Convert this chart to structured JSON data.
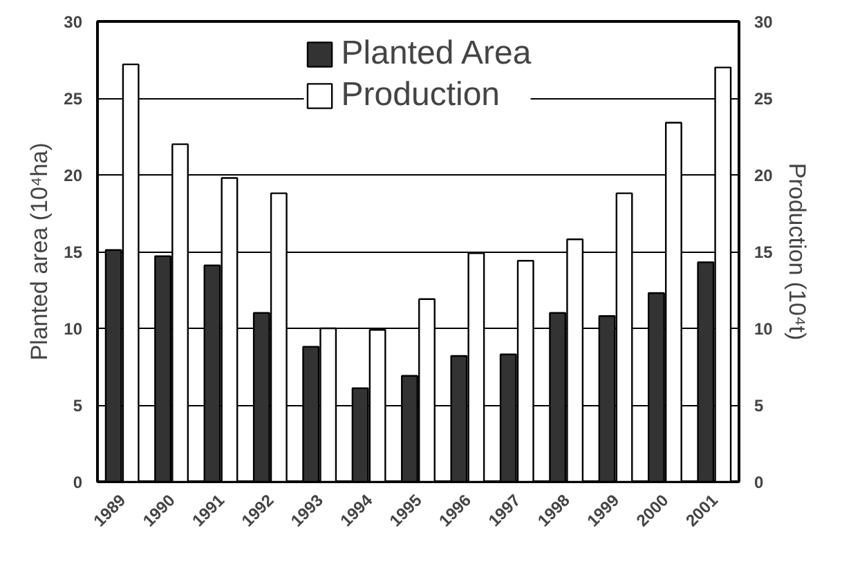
{
  "chart_data": {
    "type": "bar",
    "ylabel": "Planted area (10⁴ha)",
    "y2label": "Production (10⁴t)",
    "categories": [
      "1989",
      "1990",
      "1991",
      "1992",
      "1993",
      "1994",
      "1995",
      "1996",
      "1997",
      "1998",
      "1999",
      "2000",
      "2001"
    ],
    "series": [
      {
        "name": "Planted Area",
        "color": "#333333",
        "values": [
          15.1,
          14.7,
          14.1,
          11.0,
          8.8,
          6.1,
          6.9,
          8.2,
          8.3,
          11.0,
          10.8,
          12.3,
          14.3
        ]
      },
      {
        "name": "Production",
        "color": "#ffffff",
        "axis": "y2",
        "values": [
          27.2,
          22.0,
          19.8,
          18.8,
          10.0,
          9.9,
          11.9,
          14.9,
          14.4,
          15.8,
          18.8,
          23.4,
          27.0
        ]
      }
    ],
    "ylim": [
      0,
      30
    ],
    "yticks": [
      0,
      5,
      10,
      15,
      20,
      25,
      30
    ],
    "y2lim": [
      0,
      30
    ],
    "y2ticks": [
      0,
      5,
      10,
      15,
      20,
      25,
      30
    ],
    "grid": "y",
    "legend": "top"
  }
}
